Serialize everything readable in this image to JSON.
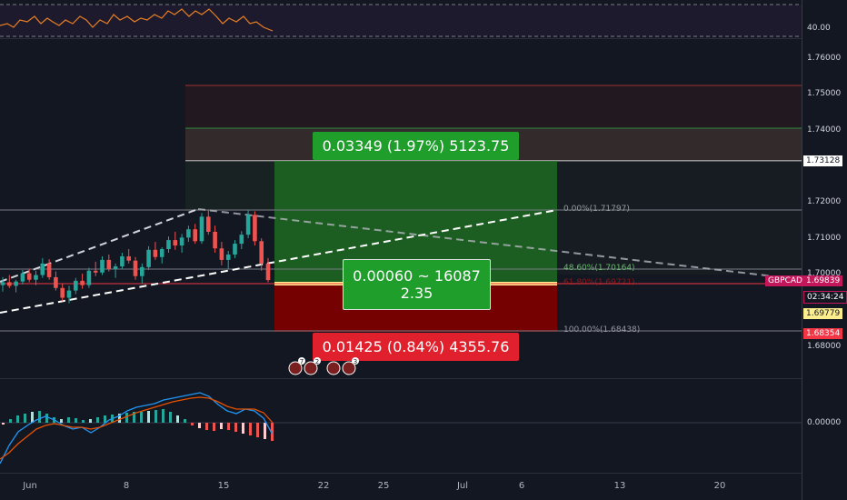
{
  "rsi_axis": {
    "label": "40.00"
  },
  "price_axis": {
    "labels": [
      "1.76000",
      "1.75000",
      "1.74000",
      "1.72000",
      "1.71000",
      "1.70000",
      "1.68000"
    ]
  },
  "tags": {
    "target": "1.73128",
    "symbol": "GBPCAD",
    "current": "1.69839",
    "timer": "02:34:24",
    "entry": "1.69779",
    "stop": "1.68354"
  },
  "macd_axis": {
    "label": "0.00000"
  },
  "dates": [
    "Jun",
    "8",
    "15",
    "22",
    "25",
    "Jul",
    "6",
    "13",
    "20"
  ],
  "position": {
    "target_label": "0.03349 (1.97%) 5123.75",
    "center_line1": "0.00060 ~ 16087",
    "center_line2": "2.35",
    "stop_label": "0.01425 (0.84%) 4355.76"
  },
  "fib": {
    "level_0": "0.00%(1.71797)",
    "level_486": "48.60%(1.70164)",
    "level_618": "61.80%(1.69721)",
    "level_100": "100.00%(1.68438)"
  },
  "event_markers": [
    "7",
    "2",
    "3"
  ],
  "colors": {
    "background": "#131722",
    "bull": "#26a69a",
    "bear": "#ef5350",
    "target_green": "#089981",
    "stop_red": "#f23645",
    "tag_pink": "#c2185b",
    "entry_yellow": "#ffee8d"
  },
  "chart_data": {
    "type": "candlestick",
    "symbol": "GBPCAD",
    "ylim": [
      1.67,
      1.765
    ],
    "x": [
      "Jun",
      "8",
      "15",
      "22",
      "25",
      "Jul",
      "6",
      "13",
      "20"
    ],
    "ohlc": [
      [
        1.697,
        1.6992,
        1.6952,
        1.6978
      ],
      [
        1.6978,
        1.6998,
        1.6962,
        1.6968
      ],
      [
        1.6968,
        1.6985,
        1.695,
        1.698
      ],
      [
        1.698,
        1.7012,
        1.6972,
        1.7003
      ],
      [
        1.7003,
        1.7016,
        1.6978,
        1.6985
      ],
      [
        1.6985,
        1.701,
        1.697,
        1.6998
      ],
      [
        1.6998,
        1.7045,
        1.699,
        1.703
      ],
      [
        1.703,
        1.7042,
        1.6985,
        1.6992
      ],
      [
        1.6992,
        1.7008,
        1.6955,
        1.6962
      ],
      [
        1.6962,
        1.6975,
        1.6925,
        1.6935
      ],
      [
        1.6935,
        1.6968,
        1.692,
        1.6955
      ],
      [
        1.6955,
        1.699,
        1.6945,
        1.6982
      ],
      [
        1.6982,
        1.7002,
        1.696,
        1.697
      ],
      [
        1.697,
        1.7018,
        1.6962,
        1.701
      ],
      [
        1.701,
        1.7035,
        1.6995,
        1.7005
      ],
      [
        1.7005,
        1.705,
        1.6998,
        1.704
      ],
      [
        1.704,
        1.7055,
        1.7008,
        1.7015
      ],
      [
        1.7015,
        1.703,
        1.699,
        1.7022
      ],
      [
        1.7022,
        1.706,
        1.7015,
        1.705
      ],
      [
        1.705,
        1.707,
        1.703,
        1.7038
      ],
      [
        1.7038,
        1.7048,
        1.6985,
        1.6995
      ],
      [
        1.6995,
        1.703,
        1.6975,
        1.702
      ],
      [
        1.702,
        1.7078,
        1.7012,
        1.7068
      ],
      [
        1.7068,
        1.709,
        1.704,
        1.7048
      ],
      [
        1.7048,
        1.7075,
        1.703,
        1.707
      ],
      [
        1.707,
        1.7105,
        1.706,
        1.7095
      ],
      [
        1.7095,
        1.7118,
        1.7068,
        1.708
      ],
      [
        1.708,
        1.7112,
        1.706,
        1.7102
      ],
      [
        1.7102,
        1.7135,
        1.709,
        1.7125
      ],
      [
        1.7125,
        1.714,
        1.7085,
        1.7092
      ],
      [
        1.7092,
        1.717,
        1.7085,
        1.716
      ],
      [
        1.716,
        1.718,
        1.711,
        1.7118
      ],
      [
        1.7118,
        1.7135,
        1.706,
        1.7072
      ],
      [
        1.7072,
        1.709,
        1.7025,
        1.704
      ],
      [
        1.704,
        1.7065,
        1.7015,
        1.7055
      ],
      [
        1.7055,
        1.7095,
        1.7045,
        1.7085
      ],
      [
        1.7085,
        1.712,
        1.707,
        1.711
      ],
      [
        1.711,
        1.7178,
        1.71,
        1.7165
      ],
      [
        1.7165,
        1.7175,
        1.708,
        1.7092
      ],
      [
        1.7092,
        1.71,
        1.701,
        1.703
      ],
      [
        1.703,
        1.7045,
        1.6978,
        1.6984
      ]
    ]
  }
}
